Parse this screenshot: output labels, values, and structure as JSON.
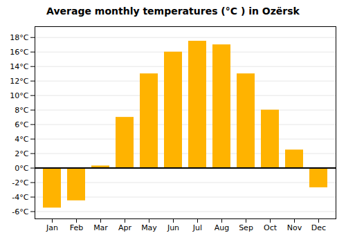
{
  "chart_data": {
    "type": "bar",
    "title": "Average monthly temperatures (°C ) in Ozërsk",
    "categories": [
      "Jan",
      "Feb",
      "Mar",
      "Apr",
      "May",
      "Jun",
      "Jul",
      "Aug",
      "Sep",
      "Oct",
      "Nov",
      "Dec"
    ],
    "values": [
      -5.5,
      -4.5,
      0.3,
      7.0,
      13.0,
      16.0,
      17.5,
      17.0,
      13.0,
      8.0,
      2.5,
      -2.7
    ],
    "color": "#FFB300",
    "ylim": [
      -7,
      19.5
    ],
    "yticks": [
      {
        "value": -6,
        "label": "-6°C"
      },
      {
        "value": -4,
        "label": "-4°C"
      },
      {
        "value": -2,
        "label": "-2°C"
      },
      {
        "value": 0,
        "label": "0°C"
      },
      {
        "value": 2,
        "label": "2°C"
      },
      {
        "value": 4,
        "label": "4°C"
      },
      {
        "value": 6,
        "label": "6°C"
      },
      {
        "value": 8,
        "label": "8°C"
      },
      {
        "value": 10,
        "label": "10°C"
      },
      {
        "value": 12,
        "label": "12°C"
      },
      {
        "value": 14,
        "label": "14°C"
      },
      {
        "value": 16,
        "label": "16°C"
      },
      {
        "value": 18,
        "label": "18°C"
      }
    ],
    "grid": true
  }
}
